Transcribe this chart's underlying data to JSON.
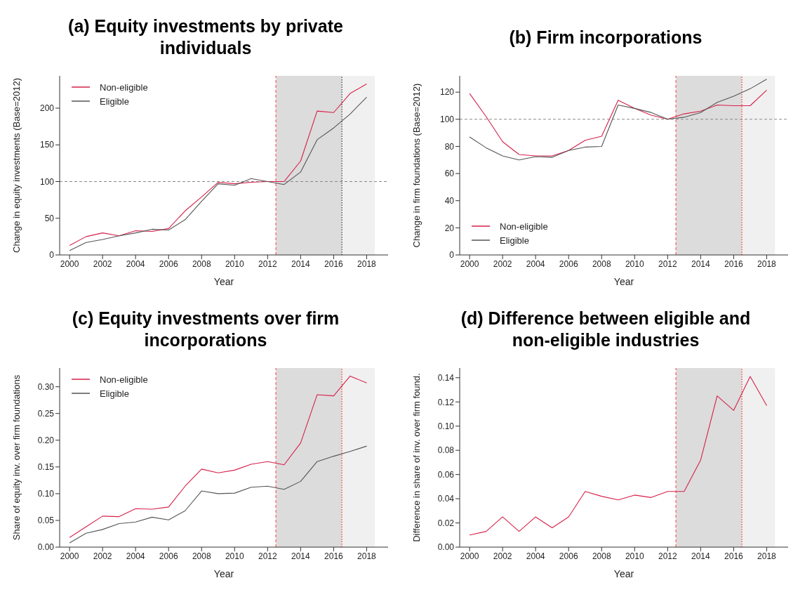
{
  "chart_data": [
    {
      "type": "line",
      "title": "(a) Equity investments by private individuals",
      "xlabel": "Year",
      "ylabel": "Change in equity investments (Base=2012)",
      "x": [
        2000,
        2001,
        2002,
        2003,
        2004,
        2005,
        2006,
        2007,
        2008,
        2009,
        2010,
        2011,
        2012,
        2013,
        2014,
        2015,
        2016,
        2017,
        2018
      ],
      "series": [
        {
          "name": "Non-eligible",
          "color": "#d6204a",
          "values": [
            13,
            25,
            30,
            26,
            33,
            32,
            36,
            60,
            79,
            99,
            97,
            99,
            100,
            100,
            128,
            196,
            194,
            220,
            233
          ]
        },
        {
          "name": "Eligible",
          "color": "#555555",
          "values": [
            6,
            17,
            21,
            26,
            30,
            35,
            34,
            48,
            73,
            97,
            95,
            104,
            100,
            96,
            113,
            157,
            173,
            192,
            215
          ]
        }
      ],
      "xlim": [
        1999.4,
        2019.3
      ],
      "xticks": [
        2000,
        2002,
        2004,
        2006,
        2008,
        2010,
        2012,
        2014,
        2016,
        2018
      ],
      "ylim": [
        0,
        244
      ],
      "yticks": [
        0,
        50,
        100,
        150,
        200
      ],
      "bands": [
        {
          "axis": "x",
          "from": 2012.5,
          "to": 2016.5,
          "color": "#dcdcdc"
        },
        {
          "axis": "x",
          "from": 2016.5,
          "to": 2018.5,
          "color": "#f0f0f0"
        }
      ],
      "ref_lines": [
        {
          "axis": "y",
          "value": 100,
          "color": "#888888",
          "line_style": "dashed"
        },
        {
          "axis": "x",
          "value": 2012.5,
          "color": "#ff5a5a",
          "line_style": "dashed"
        },
        {
          "axis": "x",
          "value": 2016.5,
          "color": "#333333",
          "line_style": "dotted"
        }
      ],
      "grid": false,
      "legend": "top left",
      "marker": "none",
      "line_style": "solid"
    },
    {
      "type": "line",
      "title": "(b) Firm incorporations",
      "xlabel": "Year",
      "ylabel": "Change in firm foundations (Base=2012)",
      "x": [
        2000,
        2001,
        2002,
        2003,
        2004,
        2005,
        2006,
        2007,
        2008,
        2009,
        2010,
        2011,
        2012,
        2013,
        2014,
        2015,
        2016,
        2017,
        2018
      ],
      "series": [
        {
          "name": "Non-eligible",
          "color": "#d6204a",
          "values": [
            119,
            102,
            83.5,
            74,
            73,
            73,
            77,
            84.5,
            87.5,
            114,
            108,
            103,
            100,
            104,
            106,
            110.5,
            110,
            110,
            121.5
          ]
        },
        {
          "name": "Eligible",
          "color": "#555555",
          "values": [
            87,
            79,
            73,
            70,
            72.5,
            72,
            77,
            79.5,
            80,
            110.5,
            108,
            105,
            100,
            101.5,
            105,
            112.5,
            117,
            122.5,
            129.5
          ]
        }
      ],
      "xlim": [
        1999.4,
        2019.3
      ],
      "xticks": [
        2000,
        2002,
        2004,
        2006,
        2008,
        2010,
        2012,
        2014,
        2016,
        2018
      ],
      "ylim": [
        0,
        132
      ],
      "yticks": [
        0,
        20,
        40,
        60,
        80,
        100,
        120
      ],
      "bands": [
        {
          "axis": "x",
          "from": 2012.5,
          "to": 2016.5,
          "color": "#dcdcdc"
        },
        {
          "axis": "x",
          "from": 2016.5,
          "to": 2018.5,
          "color": "#f0f0f0"
        }
      ],
      "ref_lines": [
        {
          "axis": "y",
          "value": 100,
          "color": "#888888",
          "line_style": "dashed"
        },
        {
          "axis": "x",
          "value": 2012.5,
          "color": "#ff5a5a",
          "line_style": "dashed"
        },
        {
          "axis": "x",
          "value": 2016.5,
          "color": "#ff3030",
          "line_style": "dotted"
        }
      ],
      "grid": false,
      "legend": "bottom left",
      "marker": "none",
      "line_style": "solid"
    },
    {
      "type": "line",
      "title": "(c) Equity investments over firm incorporations",
      "xlabel": "Year",
      "ylabel": "Share of equity inv. over firm foundations",
      "x": [
        2000,
        2001,
        2002,
        2003,
        2004,
        2005,
        2006,
        2007,
        2008,
        2009,
        2010,
        2011,
        2012,
        2013,
        2014,
        2015,
        2016,
        2017,
        2018
      ],
      "series": [
        {
          "name": "Non-eligible",
          "color": "#d6204a",
          "values": [
            0.018,
            0.038,
            0.058,
            0.057,
            0.072,
            0.071,
            0.075,
            0.114,
            0.146,
            0.139,
            0.144,
            0.155,
            0.16,
            0.154,
            0.195,
            0.285,
            0.283,
            0.32,
            0.307
          ]
        },
        {
          "name": "Eligible",
          "color": "#555555",
          "values": [
            0.008,
            0.026,
            0.033,
            0.044,
            0.047,
            0.056,
            0.051,
            0.068,
            0.105,
            0.1,
            0.101,
            0.112,
            0.114,
            0.108,
            0.123,
            0.16,
            0.17,
            0.179,
            0.189
          ]
        }
      ],
      "xlim": [
        1999.4,
        2019.3
      ],
      "xticks": [
        2000,
        2002,
        2004,
        2006,
        2008,
        2010,
        2012,
        2014,
        2016,
        2018
      ],
      "ylim": [
        0,
        0.335
      ],
      "yticks": [
        {
          "value": 0,
          "label": "0.00"
        },
        {
          "value": 0.05,
          "label": "0.05"
        },
        {
          "value": 0.1,
          "label": "0.10"
        },
        {
          "value": 0.15,
          "label": "0.15"
        },
        {
          "value": 0.2,
          "label": "0.20"
        },
        {
          "value": 0.25,
          "label": "0.25"
        },
        {
          "value": 0.3,
          "label": "0.30"
        }
      ],
      "bands": [
        {
          "axis": "x",
          "from": 2012.5,
          "to": 2016.5,
          "color": "#dcdcdc"
        },
        {
          "axis": "x",
          "from": 2016.5,
          "to": 2018.5,
          "color": "#f0f0f0"
        }
      ],
      "ref_lines": [
        {
          "axis": "x",
          "value": 2012.5,
          "color": "#ff5a5a",
          "line_style": "dashed"
        },
        {
          "axis": "x",
          "value": 2016.5,
          "color": "#ff3030",
          "line_style": "dotted"
        }
      ],
      "grid": false,
      "legend": "top left",
      "marker": "none",
      "line_style": "solid"
    },
    {
      "type": "line",
      "title": "(d) Difference between eligible and non-eligible industries",
      "xlabel": "Year",
      "ylabel": "Difference in share of inv. over firm found.",
      "x": [
        2000,
        2001,
        2002,
        2003,
        2004,
        2005,
        2006,
        2007,
        2008,
        2009,
        2010,
        2011,
        2012,
        2013,
        2014,
        2015,
        2016,
        2017,
        2018
      ],
      "series": [
        {
          "color": "#d6204a",
          "values": [
            0.01,
            0.013,
            0.025,
            0.013,
            0.025,
            0.016,
            0.025,
            0.046,
            0.042,
            0.039,
            0.043,
            0.041,
            0.046,
            0.046,
            0.072,
            0.125,
            0.113,
            0.141,
            0.117
          ]
        }
      ],
      "xlim": [
        1999.4,
        2019.3
      ],
      "xticks": [
        2000,
        2002,
        2004,
        2006,
        2008,
        2010,
        2012,
        2014,
        2016,
        2018
      ],
      "ylim": [
        0,
        0.148
      ],
      "yticks": [
        {
          "value": 0,
          "label": "0.00"
        },
        {
          "value": 0.02,
          "label": "0.02"
        },
        {
          "value": 0.04,
          "label": "0.04"
        },
        {
          "value": 0.06,
          "label": "0.06"
        },
        {
          "value": 0.08,
          "label": "0.08"
        },
        {
          "value": 0.1,
          "label": "0.10"
        },
        {
          "value": 0.12,
          "label": "0.12"
        },
        {
          "value": 0.14,
          "label": "0.14"
        }
      ],
      "bands": [
        {
          "axis": "x",
          "from": 2012.5,
          "to": 2016.5,
          "color": "#dcdcdc"
        },
        {
          "axis": "x",
          "from": 2016.5,
          "to": 2018.5,
          "color": "#f0f0f0"
        }
      ],
      "ref_lines": [
        {
          "axis": "x",
          "value": 2012.5,
          "color": "#ff5a5a",
          "line_style": "dashed"
        },
        {
          "axis": "x",
          "value": 2016.5,
          "color": "#ff3030",
          "line_style": "dotted"
        }
      ],
      "grid": false,
      "marker": "none",
      "line_style": "solid"
    }
  ]
}
